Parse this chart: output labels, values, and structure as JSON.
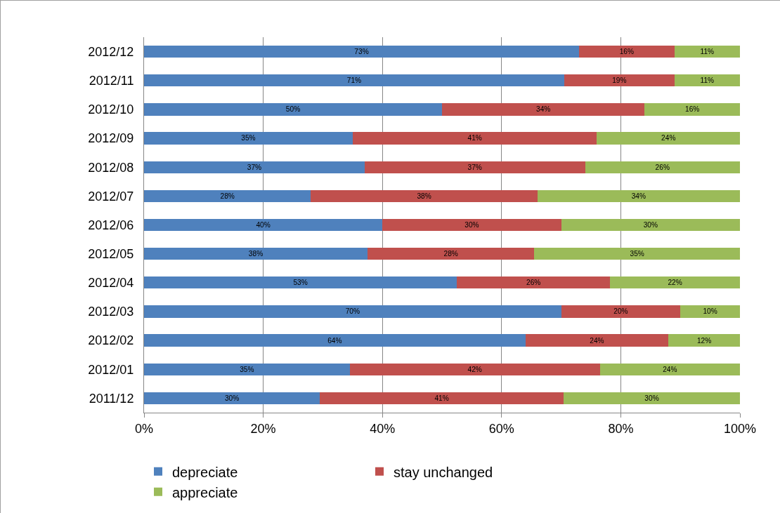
{
  "chart_data": {
    "type": "bar",
    "orientation": "horizontal",
    "stacked": true,
    "grid": "x",
    "legend": "bottom left",
    "categories": [
      "2012/12",
      "2012/11",
      "2012/10",
      "2012/09",
      "2012/08",
      "2012/07",
      "2012/06",
      "2012/05",
      "2012/04",
      "2012/03",
      "2012/02",
      "2012/01",
      "2011/12"
    ],
    "xlim": [
      0,
      100
    ],
    "xticks": [
      {
        "value": 0,
        "label": "0%"
      },
      {
        "value": 20,
        "label": "20%"
      },
      {
        "value": 40,
        "label": "40%"
      },
      {
        "value": 60,
        "label": "60%"
      },
      {
        "value": 80,
        "label": "80%"
      },
      {
        "value": 100,
        "label": "100%"
      }
    ],
    "series": [
      {
        "name": "depreciate",
        "color": "#4f81bd",
        "values": [
          73,
          70.5,
          50,
          35,
          37,
          28,
          40,
          37.5,
          52.5,
          70,
          64,
          34.5,
          29.5
        ],
        "value_labels": [
          "73%",
          "71%",
          "50%",
          "35%",
          "37%",
          "28%",
          "40%",
          "38%",
          "53%",
          "70%",
          "64%",
          "35%",
          "30%"
        ]
      },
      {
        "name": "stay unchanged",
        "color": "#c0504d",
        "values": [
          16,
          18.5,
          34,
          41,
          37,
          38,
          30,
          28,
          25.7,
          20,
          24,
          42,
          40.9
        ],
        "value_labels": [
          "16%",
          "19%",
          "34%",
          "41%",
          "37%",
          "38%",
          "30%",
          "28%",
          "26%",
          "20%",
          "24%",
          "42%",
          "41%"
        ]
      },
      {
        "name": "appreciate",
        "color": "#9bbb59",
        "values": [
          11,
          11,
          16,
          24,
          26,
          34,
          30,
          34.5,
          21.8,
          10,
          12,
          23.5,
          29.6
        ],
        "value_labels": [
          "11%",
          "11%",
          "16%",
          "24%",
          "26%",
          "34%",
          "30%",
          "35%",
          "22%",
          "10%",
          "12%",
          "24%",
          "30%"
        ]
      }
    ]
  }
}
